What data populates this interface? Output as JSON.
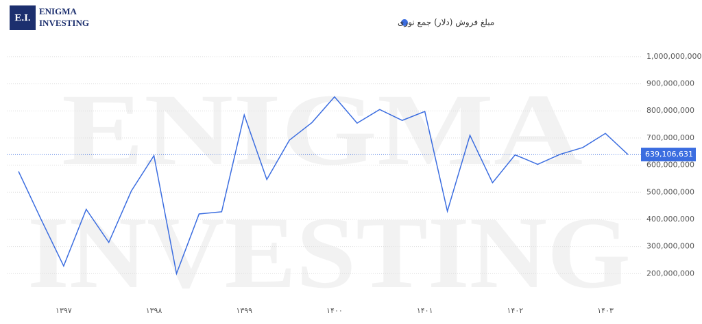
{
  "chart_data": {
    "type": "line",
    "logo": {
      "badge": "E.I.",
      "name": [
        "ENIGMA",
        "INVESTING"
      ]
    },
    "watermark": [
      "ENIGMA",
      "INVESTING"
    ],
    "categories": [
      null,
      null,
      "۱۳۹۷",
      null,
      null,
      null,
      "۱۳۹۸",
      null,
      null,
      null,
      "۱۳۹۹",
      null,
      null,
      null,
      "۱۴۰۰",
      null,
      null,
      null,
      "۱۴۰۱",
      null,
      null,
      null,
      "۱۴۰۲",
      null,
      null,
      null,
      "۱۴۰۳",
      null
    ],
    "series": [
      {
        "name": "مبلغ فروش (دلار) جمع نوری",
        "color": "#3b6de0",
        "values": [
          577000000,
          400000000,
          228000000,
          437000000,
          315000000,
          505000000,
          635000000,
          200000000,
          420000000,
          428000000,
          785000000,
          547000000,
          692000000,
          757000000,
          852000000,
          755000000,
          805000000,
          765000000,
          798000000,
          430000000,
          710000000,
          535000000,
          638000000,
          603000000,
          640000000,
          665000000,
          717000000,
          639106631
        ],
        "value_labels": [
          null,
          null,
          null,
          null,
          null,
          null,
          null,
          null,
          null,
          null,
          null,
          null,
          null,
          null,
          null,
          null,
          null,
          null,
          null,
          null,
          null,
          null,
          null,
          null,
          null,
          null,
          null,
          "639,106,631"
        ]
      }
    ],
    "ylim": [
      120000000,
      1030000000
    ],
    "yticks": [
      {
        "value": 200000000,
        "label": "200,000,000"
      },
      {
        "value": 300000000,
        "label": "300,000,000"
      },
      {
        "value": 400000000,
        "label": "400,000,000"
      },
      {
        "value": 500000000,
        "label": "500,000,000"
      },
      {
        "value": 600000000,
        "label": "600,000,000"
      },
      {
        "value": 700000000,
        "label": "700,000,000"
      },
      {
        "value": 800000000,
        "label": "800,000,000"
      },
      {
        "value": 900000000,
        "label": "900,000,000"
      },
      {
        "value": 1000000000,
        "label": "1,000,000,000"
      }
    ],
    "grid": true
  }
}
